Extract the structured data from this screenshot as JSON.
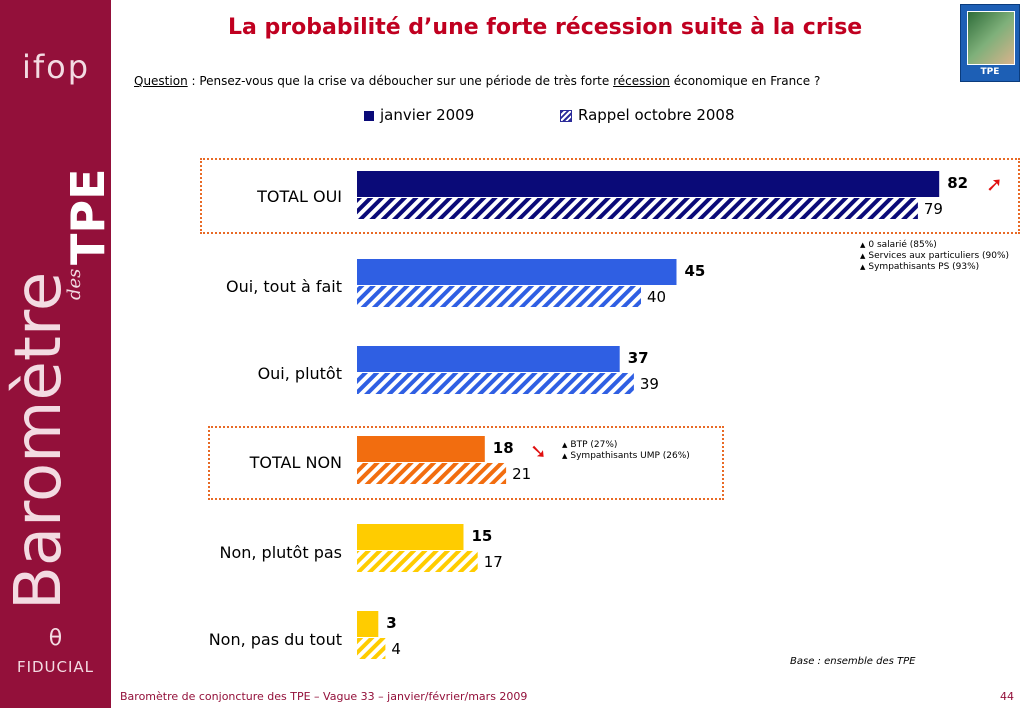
{
  "title": "La probabilité d’une forte récession suite à la crise",
  "question": {
    "label": "Question",
    "sep": " :  Pensez-vous que la crise va déboucher sur une période de très forte ",
    "keyword": "récession",
    "rest": " économique en France ?"
  },
  "badge": {
    "label": "TPE"
  },
  "sidebar": {
    "logo_text": "ifop",
    "vertical_title": "Baromètre",
    "vertical_sub": "des",
    "vertical_tpe": "TPE",
    "fiducial_mark": "θ",
    "fiducial_text": "FIDUCIAL"
  },
  "legend": {
    "current": "janvier 2009",
    "previous": "Rappel octobre 2008"
  },
  "colors": {
    "navy": "#0a0a78",
    "blue": "#2f5fe3",
    "orange": "#f26d0f",
    "yellow": "#ffcc00",
    "highlight_box": "#e86a26",
    "brand": "#93103a",
    "title": "#c00020"
  },
  "chart_data": {
    "type": "bar",
    "orientation": "horizontal",
    "categories": [
      "TOTAL OUI",
      "Oui, tout à fait",
      "Oui, plutôt",
      "TOTAL NON",
      "Non, plutôt pas",
      "Non, pas du tout"
    ],
    "series": [
      {
        "name": "janvier 2009",
        "values": [
          82,
          45,
          37,
          18,
          15,
          3
        ]
      },
      {
        "name": "Rappel octobre 2008",
        "values": [
          79,
          40,
          39,
          21,
          17,
          4
        ]
      }
    ],
    "bar_colors": [
      "#0a0a78",
      "#2f5fe3",
      "#2f5fe3",
      "#f26d0f",
      "#ffcc00",
      "#ffcc00"
    ],
    "xlim": [
      0,
      100
    ],
    "highlighted": [
      "TOTAL OUI",
      "TOTAL NON"
    ],
    "trend": {
      "TOTAL OUI": "up",
      "TOTAL NON": "down"
    }
  },
  "notes": {
    "oui": [
      "0 salarié (85%)",
      "Services aux particuliers (90%)",
      "Sympathisants PS (93%)"
    ],
    "non": [
      "BTP (27%)",
      "Sympathisants UMP (26%)"
    ]
  },
  "arrows": {
    "up": "➚",
    "down": "➘"
  },
  "base_note": "Base : ensemble des TPE",
  "footer": "Baromètre de conjoncture des TPE – Vague 33 – janvier/février/mars 2009",
  "page_number": "44"
}
